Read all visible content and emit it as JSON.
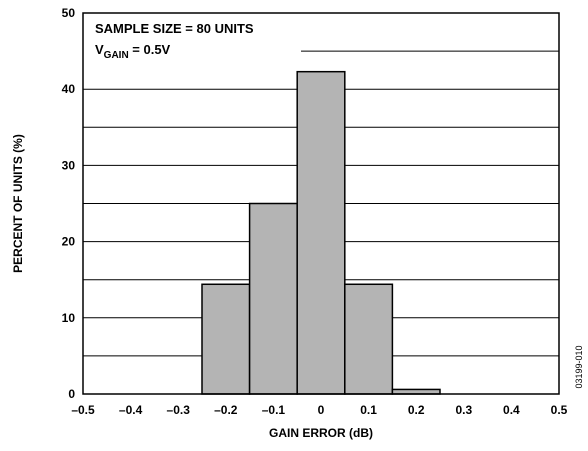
{
  "chart_data": {
    "type": "bar",
    "bin_width": 0.1,
    "bins": [
      {
        "center": -0.2,
        "value": 14.4
      },
      {
        "center": -0.1,
        "value": 25.0
      },
      {
        "center": 0.0,
        "value": 42.3
      },
      {
        "center": 0.1,
        "value": 14.4
      },
      {
        "center": 0.2,
        "value": 0.6
      }
    ],
    "xlabel": "GAIN ERROR (dB)",
    "ylabel": "PERCENT OF UNITS (%)",
    "xlim": [
      -0.5,
      0.5
    ],
    "ylim": [
      0,
      50
    ],
    "x_ticks": [
      -0.5,
      -0.4,
      -0.3,
      -0.2,
      -0.1,
      0,
      0.1,
      0.2,
      0.3,
      0.4,
      0.5
    ],
    "x_tick_labels": [
      "–0.5",
      "–0.4",
      "–0.3",
      "–0.2",
      "–0.1",
      "0",
      "0.1",
      "0.2",
      "0.3",
      "0.4",
      "0.5"
    ],
    "y_ticks": [
      0,
      10,
      20,
      30,
      40,
      50
    ],
    "y_tick_labels": [
      "0",
      "10",
      "20",
      "30",
      "40",
      "50"
    ],
    "y_grid_step": 5,
    "grid": "horizontal",
    "annotation": {
      "line1": "SAMPLE SIZE = 80 UNITS",
      "line2_main": "V",
      "line2_sub": "GAIN",
      "line2_rest": " = 0.5V"
    },
    "figure_id": "03199-010",
    "colors": {
      "bar_fill": "#b4b4b4",
      "bar_stroke": "#000000",
      "grid": "#000000",
      "frame": "#000000"
    }
  }
}
